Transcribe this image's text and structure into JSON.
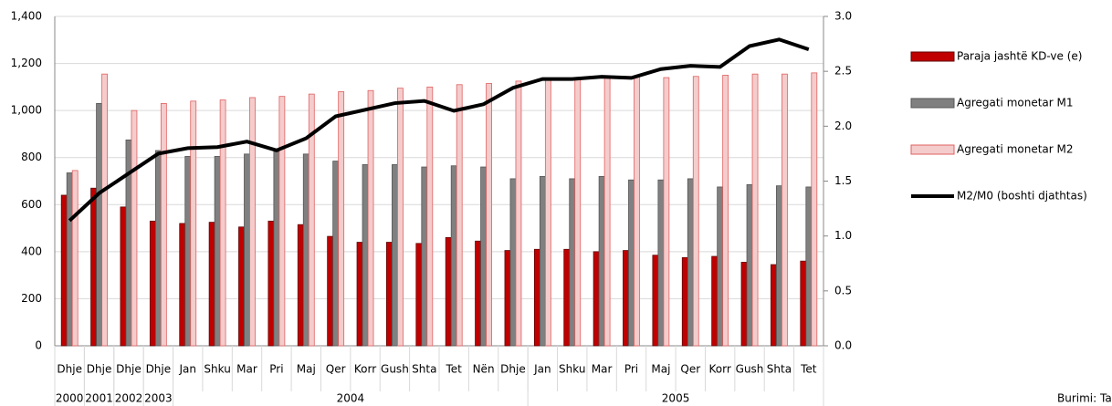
{
  "chart_data": {
    "type": "bar",
    "categories": [
      "Dhje",
      "Dhje",
      "Dhje",
      "Dhje",
      "Jan",
      "Shku",
      "Mar",
      "Pri",
      "Maj",
      "Qer",
      "Korr",
      "Gush",
      "Shta",
      "Tet",
      "Nën",
      "Dhje",
      "Jan",
      "Shku",
      "Mar",
      "Pri",
      "Maj",
      "Qer",
      "Korr",
      "Gush",
      "Shta",
      "Tet"
    ],
    "x_groups": [
      {
        "label": "2000",
        "span": 1
      },
      {
        "label": "2001",
        "span": 1
      },
      {
        "label": "2002",
        "span": 1
      },
      {
        "label": "2003",
        "span": 1
      },
      {
        "label": "2004",
        "span": 12
      },
      {
        "label": "2005",
        "span": 10
      }
    ],
    "series": [
      {
        "name": "Paraja jashtë KD-ve (e)",
        "color": "#c00000",
        "values": [
          640,
          670,
          590,
          530,
          520,
          525,
          505,
          530,
          515,
          465,
          440,
          440,
          435,
          460,
          445,
          405,
          410,
          410,
          400,
          405,
          385,
          375,
          380,
          355,
          345,
          360
        ]
      },
      {
        "name": "Agregati monetar M1",
        "color": "#808080",
        "values": [
          735,
          1030,
          875,
          830,
          805,
          805,
          815,
          825,
          815,
          785,
          770,
          770,
          760,
          765,
          760,
          710,
          720,
          710,
          720,
          705,
          705,
          710,
          675,
          685,
          680,
          675
        ]
      },
      {
        "name": "Agregati monetar M2",
        "color": "#f4cccc",
        "values": [
          745,
          1155,
          1000,
          1030,
          1040,
          1045,
          1055,
          1060,
          1070,
          1080,
          1085,
          1095,
          1100,
          1110,
          1115,
          1125,
          1135,
          1140,
          1140,
          1145,
          1140,
          1145,
          1150,
          1155,
          1155,
          1160
        ]
      },
      {
        "name": "M2/M0 (boshti djathtas)",
        "color": "#000000",
        "type": "line",
        "axis": "y2",
        "values": [
          1.14,
          1.39,
          1.57,
          1.75,
          1.8,
          1.81,
          1.86,
          1.78,
          1.89,
          2.09,
          2.15,
          2.21,
          2.23,
          2.14,
          2.2,
          2.35,
          2.43,
          2.43,
          2.45,
          2.44,
          2.52,
          2.55,
          2.54,
          2.73,
          2.79,
          2.7
        ]
      }
    ],
    "ylim": [
      0,
      1400
    ],
    "yticks": [
      0,
      200,
      400,
      600,
      800,
      {
        "value": 1000,
        "label": "1,000"
      },
      {
        "value": 1200,
        "label": "1,200"
      },
      {
        "value": 1400,
        "label": "1,400"
      }
    ],
    "y2lim": [
      0,
      3
    ],
    "y2ticks": [
      {
        "value": 0,
        "label": "0.0"
      },
      {
        "value": 0.5,
        "label": "0.5"
      },
      {
        "value": 1,
        "label": "1.0"
      },
      {
        "value": 1.5,
        "label": "1.5"
      },
      {
        "value": 2,
        "label": "2.0"
      },
      {
        "value": 2.5,
        "label": "2.5"
      },
      {
        "value": 3,
        "label": "3.0"
      }
    ],
    "grid": true,
    "legend": "right",
    "source": "Burimi: Ta"
  }
}
